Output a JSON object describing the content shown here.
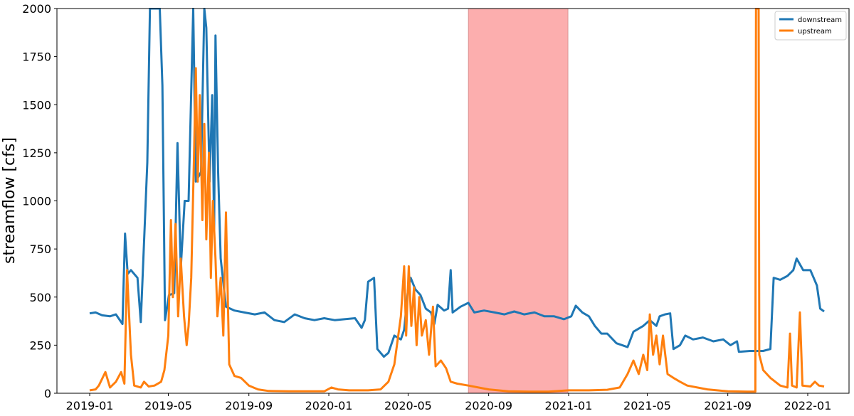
{
  "chart_data": {
    "type": "line",
    "title": "",
    "xlabel": "",
    "ylabel": "streamflow [cfs]",
    "ylim": [
      0,
      2000
    ],
    "xlim": [
      "2018-11-12",
      "2022-03-05"
    ],
    "grid": false,
    "legend_position": "top-right",
    "x_ticks": [
      "2019-01",
      "2019-05",
      "2019-09",
      "2020-01",
      "2020-05",
      "2020-09",
      "2021-01",
      "2021-05",
      "2021-09",
      "2022-01"
    ],
    "y_ticks": [
      0,
      250,
      500,
      750,
      1000,
      1250,
      1500,
      1750,
      2000
    ],
    "shaded_region": {
      "start": "2020-08-01",
      "end": "2020-12-31",
      "color": "#fcaeae"
    },
    "series": [
      {
        "name": "downstream",
        "color": "#1f77b4",
        "points": [
          [
            "2019-01-01",
            415
          ],
          [
            "2019-01-10",
            420
          ],
          [
            "2019-01-20",
            405
          ],
          [
            "2019-02-01",
            400
          ],
          [
            "2019-02-10",
            410
          ],
          [
            "2019-02-20",
            360
          ],
          [
            "2019-02-24",
            830
          ],
          [
            "2019-02-28",
            620
          ],
          [
            "2019-03-05",
            640
          ],
          [
            "2019-03-15",
            600
          ],
          [
            "2019-03-20",
            370
          ],
          [
            "2019-03-30",
            1200
          ],
          [
            "2019-04-03",
            2000
          ],
          [
            "2019-04-06",
            2000
          ],
          [
            "2019-04-18",
            2000
          ],
          [
            "2019-04-22",
            1600
          ],
          [
            "2019-04-26",
            380
          ],
          [
            "2019-05-02",
            510
          ],
          [
            "2019-05-10",
            520
          ],
          [
            "2019-05-15",
            1300
          ],
          [
            "2019-05-20",
            650
          ],
          [
            "2019-05-26",
            1000
          ],
          [
            "2019-06-01",
            1000
          ],
          [
            "2019-06-08",
            2000
          ],
          [
            "2019-06-12",
            1100
          ],
          [
            "2019-06-20",
            1150
          ],
          [
            "2019-06-25",
            2000
          ],
          [
            "2019-06-28",
            1900
          ],
          [
            "2019-07-03",
            1100
          ],
          [
            "2019-07-07",
            1550
          ],
          [
            "2019-07-10",
            850
          ],
          [
            "2019-07-12",
            1860
          ],
          [
            "2019-07-16",
            1150
          ],
          [
            "2019-07-20",
            700
          ],
          [
            "2019-07-28",
            450
          ],
          [
            "2019-08-10",
            430
          ],
          [
            "2019-08-25",
            420
          ],
          [
            "2019-09-10",
            410
          ],
          [
            "2019-09-25",
            420
          ],
          [
            "2019-10-10",
            380
          ],
          [
            "2019-10-25",
            370
          ],
          [
            "2019-11-10",
            410
          ],
          [
            "2019-11-25",
            390
          ],
          [
            "2019-12-10",
            380
          ],
          [
            "2019-12-25",
            390
          ],
          [
            "2020-01-10",
            380
          ],
          [
            "2020-01-25",
            385
          ],
          [
            "2020-02-10",
            390
          ],
          [
            "2020-02-20",
            340
          ],
          [
            "2020-02-25",
            380
          ],
          [
            "2020-03-01",
            580
          ],
          [
            "2020-03-10",
            600
          ],
          [
            "2020-03-15",
            230
          ],
          [
            "2020-03-25",
            190
          ],
          [
            "2020-04-01",
            210
          ],
          [
            "2020-04-10",
            300
          ],
          [
            "2020-04-20",
            280
          ],
          [
            "2020-04-25",
            330
          ],
          [
            "2020-05-01",
            540
          ],
          [
            "2020-05-05",
            600
          ],
          [
            "2020-05-12",
            540
          ],
          [
            "2020-05-20",
            510
          ],
          [
            "2020-05-28",
            440
          ],
          [
            "2020-06-05",
            420
          ],
          [
            "2020-06-10",
            360
          ],
          [
            "2020-06-15",
            460
          ],
          [
            "2020-06-25",
            430
          ],
          [
            "2020-07-01",
            440
          ],
          [
            "2020-07-05",
            640
          ],
          [
            "2020-07-08",
            420
          ],
          [
            "2020-07-20",
            450
          ],
          [
            "2020-08-01",
            470
          ],
          [
            "2020-08-10",
            420
          ],
          [
            "2020-08-25",
            430
          ],
          [
            "2020-09-10",
            420
          ],
          [
            "2020-09-25",
            410
          ],
          [
            "2020-10-10",
            425
          ],
          [
            "2020-10-25",
            410
          ],
          [
            "2020-11-10",
            420
          ],
          [
            "2020-11-25",
            400
          ],
          [
            "2020-12-10",
            400
          ],
          [
            "2020-12-25",
            385
          ],
          [
            "2021-01-05",
            400
          ],
          [
            "2021-01-12",
            455
          ],
          [
            "2021-01-22",
            420
          ],
          [
            "2021-02-01",
            400
          ],
          [
            "2021-02-10",
            350
          ],
          [
            "2021-02-20",
            310
          ],
          [
            "2021-03-01",
            310
          ],
          [
            "2021-03-15",
            260
          ],
          [
            "2021-04-01",
            240
          ],
          [
            "2021-04-10",
            320
          ],
          [
            "2021-04-25",
            350
          ],
          [
            "2021-05-05",
            380
          ],
          [
            "2021-05-15",
            350
          ],
          [
            "2021-05-20",
            400
          ],
          [
            "2021-05-28",
            410
          ],
          [
            "2021-06-05",
            415
          ],
          [
            "2021-06-10",
            230
          ],
          [
            "2021-06-20",
            250
          ],
          [
            "2021-06-28",
            300
          ],
          [
            "2021-07-10",
            280
          ],
          [
            "2021-07-25",
            290
          ],
          [
            "2021-08-10",
            270
          ],
          [
            "2021-08-25",
            280
          ],
          [
            "2021-09-05",
            250
          ],
          [
            "2021-09-15",
            270
          ],
          [
            "2021-09-18",
            215
          ],
          [
            "2021-10-05",
            220
          ],
          [
            "2021-10-25",
            220
          ],
          [
            "2021-11-05",
            230
          ],
          [
            "2021-11-10",
            600
          ],
          [
            "2021-11-20",
            590
          ],
          [
            "2021-12-01",
            610
          ],
          [
            "2021-12-10",
            640
          ],
          [
            "2021-12-15",
            700
          ],
          [
            "2021-12-25",
            640
          ],
          [
            "2022-01-05",
            640
          ],
          [
            "2022-01-15",
            560
          ],
          [
            "2022-01-20",
            440
          ],
          [
            "2022-01-26",
            425
          ]
        ]
      },
      {
        "name": "upstream",
        "color": "#ff7f0e",
        "points": [
          [
            "2019-01-01",
            15
          ],
          [
            "2019-01-10",
            20
          ],
          [
            "2019-01-15",
            40
          ],
          [
            "2019-01-25",
            110
          ],
          [
            "2019-02-01",
            30
          ],
          [
            "2019-02-10",
            60
          ],
          [
            "2019-02-18",
            110
          ],
          [
            "2019-02-23",
            50
          ],
          [
            "2019-02-27",
            640
          ],
          [
            "2019-03-05",
            200
          ],
          [
            "2019-03-10",
            40
          ],
          [
            "2019-03-20",
            30
          ],
          [
            "2019-03-25",
            60
          ],
          [
            "2019-04-01",
            35
          ],
          [
            "2019-04-10",
            40
          ],
          [
            "2019-04-20",
            60
          ],
          [
            "2019-04-25",
            120
          ],
          [
            "2019-05-01",
            300
          ],
          [
            "2019-05-05",
            900
          ],
          [
            "2019-05-08",
            500
          ],
          [
            "2019-05-12",
            880
          ],
          [
            "2019-05-16",
            400
          ],
          [
            "2019-05-20",
            700
          ],
          [
            "2019-05-25",
            400
          ],
          [
            "2019-05-29",
            250
          ],
          [
            "2019-06-01",
            350
          ],
          [
            "2019-06-05",
            600
          ],
          [
            "2019-06-09",
            1200
          ],
          [
            "2019-06-12",
            1690
          ],
          [
            "2019-06-15",
            1100
          ],
          [
            "2019-06-18",
            1550
          ],
          [
            "2019-06-22",
            900
          ],
          [
            "2019-06-25",
            1400
          ],
          [
            "2019-06-28",
            800
          ],
          [
            "2019-07-02",
            1250
          ],
          [
            "2019-07-05",
            600
          ],
          [
            "2019-07-08",
            1000
          ],
          [
            "2019-07-12",
            700
          ],
          [
            "2019-07-15",
            400
          ],
          [
            "2019-07-20",
            600
          ],
          [
            "2019-07-24",
            300
          ],
          [
            "2019-07-28",
            940
          ],
          [
            "2019-08-02",
            150
          ],
          [
            "2019-08-10",
            90
          ],
          [
            "2019-08-20",
            80
          ],
          [
            "2019-09-01",
            40
          ],
          [
            "2019-09-15",
            20
          ],
          [
            "2019-10-01",
            12
          ],
          [
            "2019-11-01",
            10
          ],
          [
            "2019-12-01",
            10
          ],
          [
            "2019-12-25",
            10
          ],
          [
            "2020-01-05",
            30
          ],
          [
            "2020-01-15",
            20
          ],
          [
            "2020-02-01",
            15
          ],
          [
            "2020-03-01",
            15
          ],
          [
            "2020-03-20",
            20
          ],
          [
            "2020-04-01",
            60
          ],
          [
            "2020-04-10",
            150
          ],
          [
            "2020-04-20",
            400
          ],
          [
            "2020-04-25",
            660
          ],
          [
            "2020-04-28",
            300
          ],
          [
            "2020-05-02",
            660
          ],
          [
            "2020-05-06",
            350
          ],
          [
            "2020-05-10",
            550
          ],
          [
            "2020-05-14",
            250
          ],
          [
            "2020-05-18",
            500
          ],
          [
            "2020-05-22",
            300
          ],
          [
            "2020-05-28",
            380
          ],
          [
            "2020-06-02",
            200
          ],
          [
            "2020-06-08",
            450
          ],
          [
            "2020-06-12",
            140
          ],
          [
            "2020-06-20",
            170
          ],
          [
            "2020-06-28",
            130
          ],
          [
            "2020-07-05",
            60
          ],
          [
            "2020-07-15",
            50
          ],
          [
            "2020-08-01",
            40
          ],
          [
            "2020-09-01",
            20
          ],
          [
            "2020-10-01",
            10
          ],
          [
            "2020-11-01",
            8
          ],
          [
            "2020-12-01",
            8
          ],
          [
            "2021-01-01",
            15
          ],
          [
            "2021-02-01",
            15
          ],
          [
            "2021-03-01",
            18
          ],
          [
            "2021-03-20",
            30
          ],
          [
            "2021-04-01",
            100
          ],
          [
            "2021-04-10",
            170
          ],
          [
            "2021-04-18",
            100
          ],
          [
            "2021-04-25",
            200
          ],
          [
            "2021-05-01",
            120
          ],
          [
            "2021-05-05",
            410
          ],
          [
            "2021-05-10",
            200
          ],
          [
            "2021-05-15",
            300
          ],
          [
            "2021-05-20",
            150
          ],
          [
            "2021-05-25",
            300
          ],
          [
            "2021-06-01",
            100
          ],
          [
            "2021-06-10",
            80
          ],
          [
            "2021-06-20",
            60
          ],
          [
            "2021-07-01",
            40
          ],
          [
            "2021-08-01",
            20
          ],
          [
            "2021-09-01",
            10
          ],
          [
            "2021-10-01",
            8
          ],
          [
            "2021-10-13",
            8
          ],
          [
            "2021-10-14",
            2000
          ],
          [
            "2021-10-18",
            2000
          ],
          [
            "2021-10-19",
            200
          ],
          [
            "2021-10-25",
            120
          ],
          [
            "2021-11-05",
            80
          ],
          [
            "2021-11-20",
            40
          ],
          [
            "2021-12-01",
            30
          ],
          [
            "2021-12-05",
            310
          ],
          [
            "2021-12-08",
            40
          ],
          [
            "2021-12-15",
            30
          ],
          [
            "2021-12-20",
            420
          ],
          [
            "2021-12-24",
            40
          ],
          [
            "2022-01-05",
            35
          ],
          [
            "2022-01-12",
            60
          ],
          [
            "2022-01-18",
            40
          ],
          [
            "2022-01-26",
            35
          ]
        ]
      }
    ]
  }
}
